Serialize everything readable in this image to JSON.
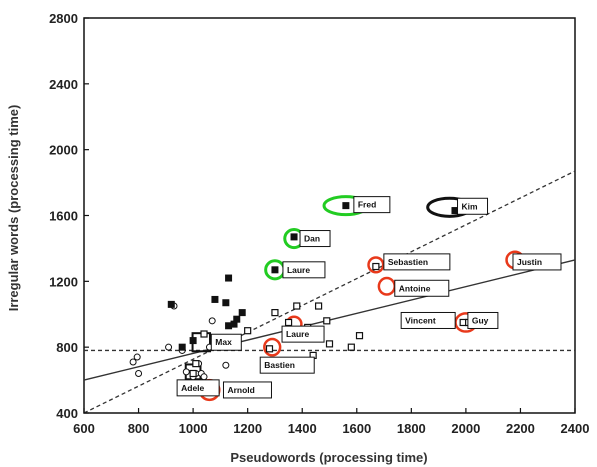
{
  "chart_data": {
    "type": "scatter",
    "title": "",
    "xlabel": "Pseudowords (processing time)",
    "ylabel": "Irregular words (processing time)",
    "xlim": [
      600,
      2400
    ],
    "ylim": [
      400,
      2800
    ],
    "xticks": [
      600,
      800,
      1000,
      1200,
      1400,
      1600,
      1800,
      2000,
      2200,
      2400
    ],
    "yticks": [
      400,
      800,
      1200,
      1600,
      2000,
      2400,
      2800
    ],
    "grid": false,
    "legend": "none",
    "series": [
      {
        "marker": "open-circle",
        "points": [
          {
            "x": 780,
            "y": 710
          },
          {
            "x": 795,
            "y": 740
          },
          {
            "x": 800,
            "y": 640
          },
          {
            "x": 910,
            "y": 800
          },
          {
            "x": 930,
            "y": 1050
          },
          {
            "x": 960,
            "y": 780
          },
          {
            "x": 975,
            "y": 650
          },
          {
            "x": 1000,
            "y": 620
          },
          {
            "x": 1010,
            "y": 640
          },
          {
            "x": 1020,
            "y": 700
          },
          {
            "x": 1030,
            "y": 640
          },
          {
            "x": 1040,
            "y": 620
          },
          {
            "x": 1060,
            "y": 800
          },
          {
            "x": 1070,
            "y": 960
          },
          {
            "x": 1120,
            "y": 690
          }
        ]
      },
      {
        "marker": "filled-square",
        "points": [
          {
            "x": 920,
            "y": 1060
          },
          {
            "x": 960,
            "y": 800
          },
          {
            "x": 1000,
            "y": 840
          },
          {
            "x": 1080,
            "y": 1090
          },
          {
            "x": 1120,
            "y": 1070
          },
          {
            "x": 1130,
            "y": 1220
          },
          {
            "x": 1130,
            "y": 930
          },
          {
            "x": 1150,
            "y": 940
          },
          {
            "x": 1160,
            "y": 970
          },
          {
            "x": 1180,
            "y": 1010
          },
          {
            "x": 1300,
            "y": 1270
          },
          {
            "x": 1370,
            "y": 1470
          },
          {
            "x": 1560,
            "y": 1660
          },
          {
            "x": 1960,
            "y": 1630
          }
        ]
      },
      {
        "marker": "open-square",
        "points": [
          {
            "x": 1000,
            "y": 640
          },
          {
            "x": 1010,
            "y": 700
          },
          {
            "x": 1040,
            "y": 880
          },
          {
            "x": 1200,
            "y": 900
          },
          {
            "x": 1280,
            "y": 790
          },
          {
            "x": 1300,
            "y": 1010
          },
          {
            "x": 1350,
            "y": 950
          },
          {
            "x": 1380,
            "y": 1050
          },
          {
            "x": 1420,
            "y": 920
          },
          {
            "x": 1440,
            "y": 750
          },
          {
            "x": 1460,
            "y": 1050
          },
          {
            "x": 1490,
            "y": 960
          },
          {
            "x": 1500,
            "y": 820
          },
          {
            "x": 1580,
            "y": 800
          },
          {
            "x": 1610,
            "y": 870
          },
          {
            "x": 1670,
            "y": 1290
          },
          {
            "x": 1990,
            "y": 950
          },
          {
            "x": 2010,
            "y": 950
          },
          {
            "x": 2240,
            "y": 1330
          }
        ]
      }
    ],
    "lines": [
      {
        "style": "solid",
        "from": [
          600,
          600
        ],
        "to": [
          2400,
          1330
        ]
      },
      {
        "style": "dashed",
        "from": [
          600,
          400
        ],
        "to": [
          2400,
          1870
        ]
      },
      {
        "style": "dashed",
        "from": [
          600,
          780
        ],
        "to": [
          2400,
          780
        ]
      }
    ],
    "annotations": [
      {
        "label": "Fred",
        "x": 1560,
        "y": 1660,
        "ring": "green",
        "ring_rx": 80,
        "ring_ry": 55
      },
      {
        "label": "Kim",
        "x": 1940,
        "y": 1650,
        "ring": "black",
        "ring_rx": 80,
        "ring_ry": 55
      },
      {
        "label": "Dan",
        "x": 1370,
        "y": 1460,
        "ring": "green",
        "ring_rx": 34,
        "ring_ry": 55
      },
      {
        "label": "Laure",
        "x": 1300,
        "y": 1270,
        "ring": "green",
        "ring_rx": 34,
        "ring_ry": 55
      },
      {
        "label": "Sebastien",
        "x": 1670,
        "y": 1300,
        "ring": "red",
        "ring_rx": 27,
        "ring_ry": 45
      },
      {
        "label": "Antoine",
        "x": 1710,
        "y": 1170,
        "ring": "red",
        "ring_rx": 29,
        "ring_ry": 50
      },
      {
        "label": "Justin",
        "x": 2180,
        "y": 1330,
        "ring": "red",
        "ring_rx": 31,
        "ring_ry": 50
      },
      {
        "label": "Laure",
        "x": 1370,
        "y": 940,
        "ring": "red",
        "ring_rx": 27,
        "ring_ry": 45
      },
      {
        "label": "Max",
        "x": 1030,
        "y": 830,
        "ring": "black-square",
        "ring_rx": 32,
        "ring_ry": 55
      },
      {
        "label": "Bastien",
        "x": 1290,
        "y": 800,
        "ring": "red",
        "ring_rx": 29,
        "ring_ry": 50
      },
      {
        "label": "Vincent",
        "x": 1990,
        "y": 950,
        "ring": "none"
      },
      {
        "label": "Guy",
        "x": 2000,
        "y": 950,
        "ring": "red",
        "ring_rx": 38,
        "ring_ry": 55
      },
      {
        "label": "Adele",
        "x": 1000,
        "y": 650,
        "ring": "black-square",
        "ring_rx": 27,
        "ring_ry": 45
      },
      {
        "label": "Arnold",
        "x": 1060,
        "y": 540,
        "ring": "red",
        "ring_rx": 36,
        "ring_ry": 60
      }
    ]
  },
  "colors": {
    "green": "#22cc22",
    "red": "#e8391b",
    "black": "#111111"
  }
}
